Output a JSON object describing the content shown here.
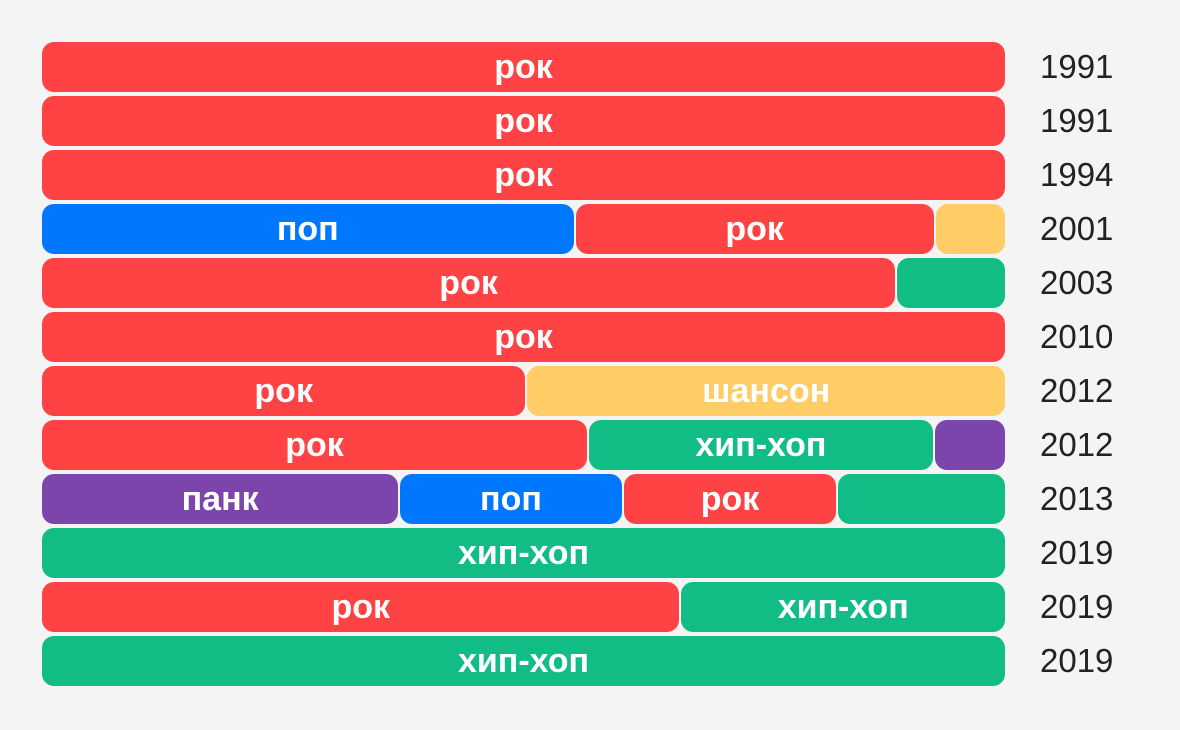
{
  "colors": {
    "рок": "#ff4244",
    "поп": "#0077ff",
    "шансон": "#ffcc66",
    "хип-хоп": "#12bc85",
    "панк": "#7b45ab",
    "background": "#f4f4f4"
  },
  "chart_data": {
    "type": "bar",
    "orientation": "horizontal",
    "stacked": true,
    "normalized": true,
    "rows": [
      {
        "year": "1991",
        "segments": [
          {
            "genre": "рок",
            "label": "рок",
            "share": 1.0
          }
        ]
      },
      {
        "year": "1991",
        "segments": [
          {
            "genre": "рок",
            "label": "рок",
            "share": 1.0
          }
        ]
      },
      {
        "year": "1994",
        "segments": [
          {
            "genre": "рок",
            "label": "рок",
            "share": 1.0
          }
        ]
      },
      {
        "year": "2001",
        "segments": [
          {
            "genre": "поп",
            "label": "поп",
            "share": 0.553
          },
          {
            "genre": "рок",
            "label": "рок",
            "share": 0.374
          },
          {
            "genre": "шансон",
            "label": "",
            "share": 0.073
          }
        ]
      },
      {
        "year": "2003",
        "segments": [
          {
            "genre": "рок",
            "label": "рок",
            "share": 0.887
          },
          {
            "genre": "хип-хоп",
            "label": "",
            "share": 0.113
          }
        ]
      },
      {
        "year": "2010",
        "segments": [
          {
            "genre": "рок",
            "label": "рок",
            "share": 1.0
          }
        ]
      },
      {
        "year": "2012",
        "segments": [
          {
            "genre": "рок",
            "label": "рок",
            "share": 0.503
          },
          {
            "genre": "шансон",
            "label": "шансон",
            "share": 0.497
          }
        ]
      },
      {
        "year": "2012",
        "segments": [
          {
            "genre": "рок",
            "label": "рок",
            "share": 0.567
          },
          {
            "genre": "хип-хоп",
            "label": "хип-хоп",
            "share": 0.359
          },
          {
            "genre": "панк",
            "label": "",
            "share": 0.074
          }
        ]
      },
      {
        "year": "2013",
        "segments": [
          {
            "genre": "панк",
            "label": "панк",
            "share": 0.371
          },
          {
            "genre": "поп",
            "label": "поп",
            "share": 0.232
          },
          {
            "genre": "рок",
            "label": "рок",
            "share": 0.223
          },
          {
            "genre": "хип-хоп",
            "label": "",
            "share": 0.174
          }
        ]
      },
      {
        "year": "2019",
        "segments": [
          {
            "genre": "хип-хоп",
            "label": "хип-хоп",
            "share": 1.0
          }
        ]
      },
      {
        "year": "2019",
        "segments": [
          {
            "genre": "рок",
            "label": "рок",
            "share": 0.663
          },
          {
            "genre": "хип-хоп",
            "label": "хип-хоп",
            "share": 0.337
          }
        ]
      },
      {
        "year": "2019",
        "segments": [
          {
            "genre": "хип-хоп",
            "label": "хип-хоп",
            "share": 1.0
          }
        ]
      }
    ]
  }
}
